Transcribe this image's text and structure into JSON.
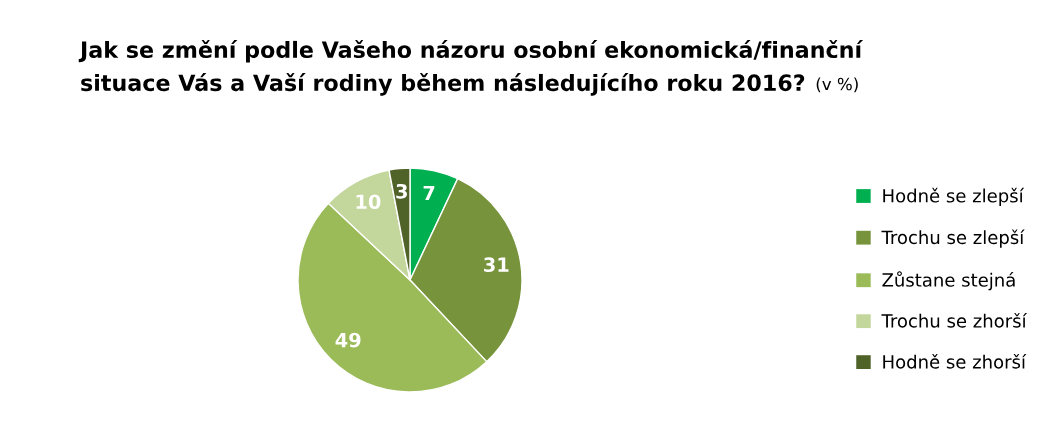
{
  "chart_data": {
    "type": "pie",
    "title": "Jak se změní podle Vašeho názoru osobní ekonomická/finanční\nsituace Vás a Vaší rodiny během následujícího roku 2016?",
    "subtitle": "(v %)",
    "categories": [
      "Hodně se zlepší",
      "Trochu se zlepší",
      "Zůstane stejná",
      "Trochu se zhorší",
      "Hodně se zhorší"
    ],
    "values": [
      7,
      31,
      49,
      10,
      3
    ],
    "colors": [
      "#00b050",
      "#77933c",
      "#9bbb59",
      "#c3d69b",
      "#4f6228"
    ],
    "data_labels": true,
    "legend": "right"
  }
}
